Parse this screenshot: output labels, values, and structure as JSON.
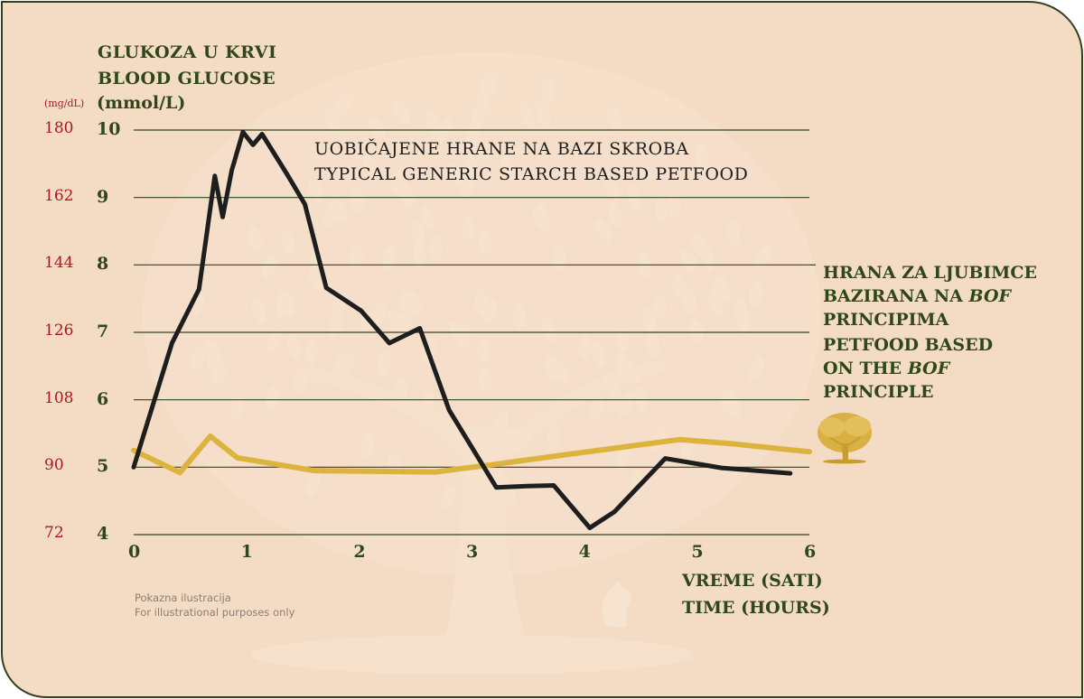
{
  "colors": {
    "background": "#f4dcc4",
    "text_green": "#2f4719",
    "text_red": "#a8181c",
    "starch_series": "#1e1e1e",
    "bof_series": "#dbb33d",
    "grid": "#2f4719"
  },
  "icons": {
    "tree": "tree-icon",
    "dog": "dog-icon"
  },
  "chart_data": {
    "type": "line",
    "y_title_lines": [
      "GLUKOZA U KRVI",
      "BLOOD GLUCOSE"
    ],
    "y_unit_primary": "(mmol/L)",
    "y_unit_secondary": "(mg/dL)",
    "xlabel_lines": [
      "VREME (SATI)",
      "TIME (HOURS)"
    ],
    "xlim": [
      0,
      6
    ],
    "ylim": [
      4,
      10
    ],
    "x_ticks": [
      0,
      1,
      2,
      3,
      4,
      5,
      6
    ],
    "y_ticks": [
      4,
      5,
      6,
      7,
      8,
      9,
      10
    ],
    "y_ticks_mgdl": [
      72,
      90,
      108,
      126,
      144,
      162,
      180
    ],
    "grid": "horizontal",
    "series": [
      {
        "name_lines": [
          "UOBIČAJENE HRANE NA BAZI SKROBA",
          "TYPICAL GENERIC STARCH BASED PETFOOD"
        ],
        "color": "#1e1e1e",
        "x": [
          0,
          0.34,
          0.58,
          0.72,
          0.79,
          0.87,
          0.97,
          1.06,
          1.14,
          1.36,
          1.52,
          1.71,
          2.02,
          2.27,
          2.54,
          2.8,
          3.22,
          3.49,
          3.73,
          4.05,
          4.27,
          4.72,
          5.22,
          5.83
        ],
        "y": [
          5.0,
          6.84,
          7.64,
          9.32,
          8.71,
          9.4,
          9.97,
          9.78,
          9.94,
          9.35,
          8.9,
          7.66,
          7.32,
          6.84,
          7.06,
          5.85,
          4.7,
          4.72,
          4.73,
          4.1,
          4.34,
          5.13,
          4.99,
          4.91
        ]
      },
      {
        "name_lines": [
          "HRANA ZA LJUBIMCE",
          "BAZIRANA NA BOF",
          "PRINCIPIMA",
          "PETFOOD BASED",
          "ON THE BOF",
          "PRINCIPLE"
        ],
        "color": "#dbb33d",
        "x": [
          0,
          0.41,
          0.68,
          0.92,
          1.6,
          2.08,
          2.68,
          3.2,
          3.9,
          4.85,
          5.3,
          6.0
        ],
        "y": [
          5.25,
          4.92,
          5.46,
          5.14,
          4.95,
          4.94,
          4.93,
          5.04,
          5.2,
          5.41,
          5.35,
          5.23
        ]
      }
    ]
  },
  "legend_bof": {
    "line1": "HRANA ZA LJUBIMCE",
    "line2_prefix": "BAZIRANA NA ",
    "line2_em": "BOF",
    "line3": "PRINCIPIMA",
    "line4": "PETFOOD BASED",
    "line5_prefix": "ON THE ",
    "line5_em": "BOF",
    "line6": "PRINCIPLE"
  },
  "footnote": {
    "line1": "Pokazna ilustracija",
    "line2": "For illustrational purposes only"
  }
}
